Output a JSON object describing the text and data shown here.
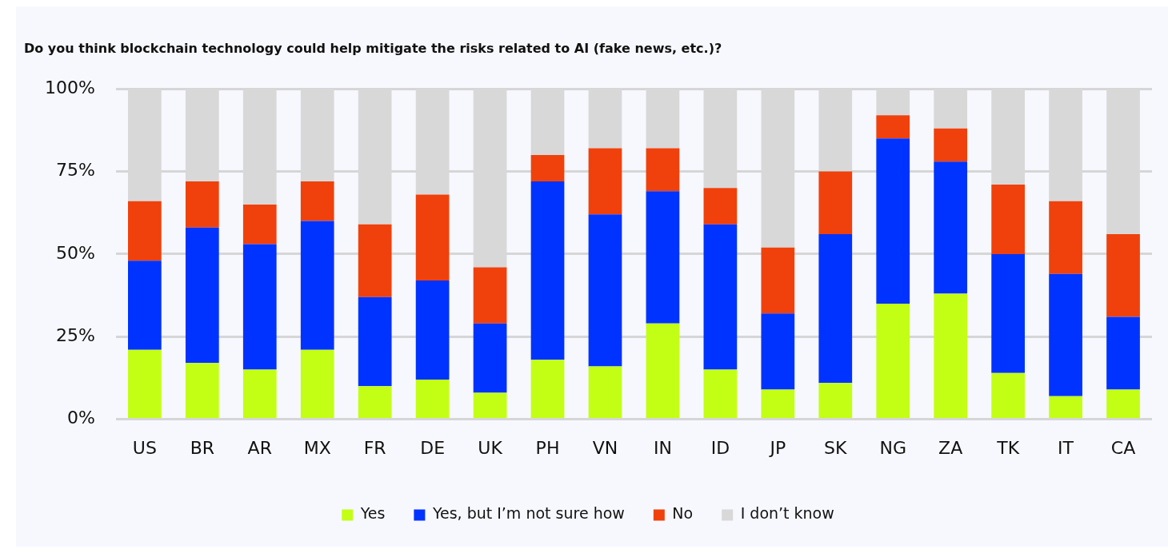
{
  "chart_data": {
    "type": "bar",
    "stacked": true,
    "title": "Do you think blockchain technology could help mitigate the risks related to AI (fake news, etc.)?",
    "categories": [
      "US",
      "BR",
      "AR",
      "MX",
      "FR",
      "DE",
      "UK",
      "PH",
      "VN",
      "IN",
      "ID",
      "JP",
      "SK",
      "NG",
      "ZA",
      "TK",
      "IT",
      "CA"
    ],
    "series": [
      {
        "name": "Yes",
        "color": "#c3ff14",
        "values": [
          21,
          17,
          15,
          21,
          10,
          12,
          8,
          18,
          16,
          29,
          15,
          9,
          11,
          35,
          38,
          14,
          7,
          9
        ]
      },
      {
        "name": "Yes, but I’m not sure how",
        "color": "#0033ff",
        "values": [
          27,
          41,
          38,
          39,
          27,
          30,
          21,
          54,
          46,
          40,
          44,
          23,
          45,
          50,
          40,
          36,
          37,
          22
        ]
      },
      {
        "name": "No",
        "color": "#f0410c",
        "values": [
          18,
          14,
          12,
          12,
          22,
          26,
          17,
          8,
          20,
          13,
          11,
          20,
          19,
          7,
          10,
          21,
          22,
          25
        ]
      },
      {
        "name": "I don’t know",
        "color": "#d8d8d8",
        "values": [
          34,
          28,
          35,
          28,
          41,
          32,
          54,
          20,
          18,
          18,
          30,
          48,
          25,
          8,
          12,
          29,
          34,
          44
        ]
      }
    ],
    "ylim": [
      0,
      100
    ],
    "yticks": [
      {
        "value": 0,
        "label": "0%"
      },
      {
        "value": 25,
        "label": "25%"
      },
      {
        "value": 50,
        "label": "50%"
      },
      {
        "value": 75,
        "label": "75%"
      },
      {
        "value": 100,
        "label": "100%"
      }
    ],
    "grid": "y",
    "legend": "bottom"
  }
}
